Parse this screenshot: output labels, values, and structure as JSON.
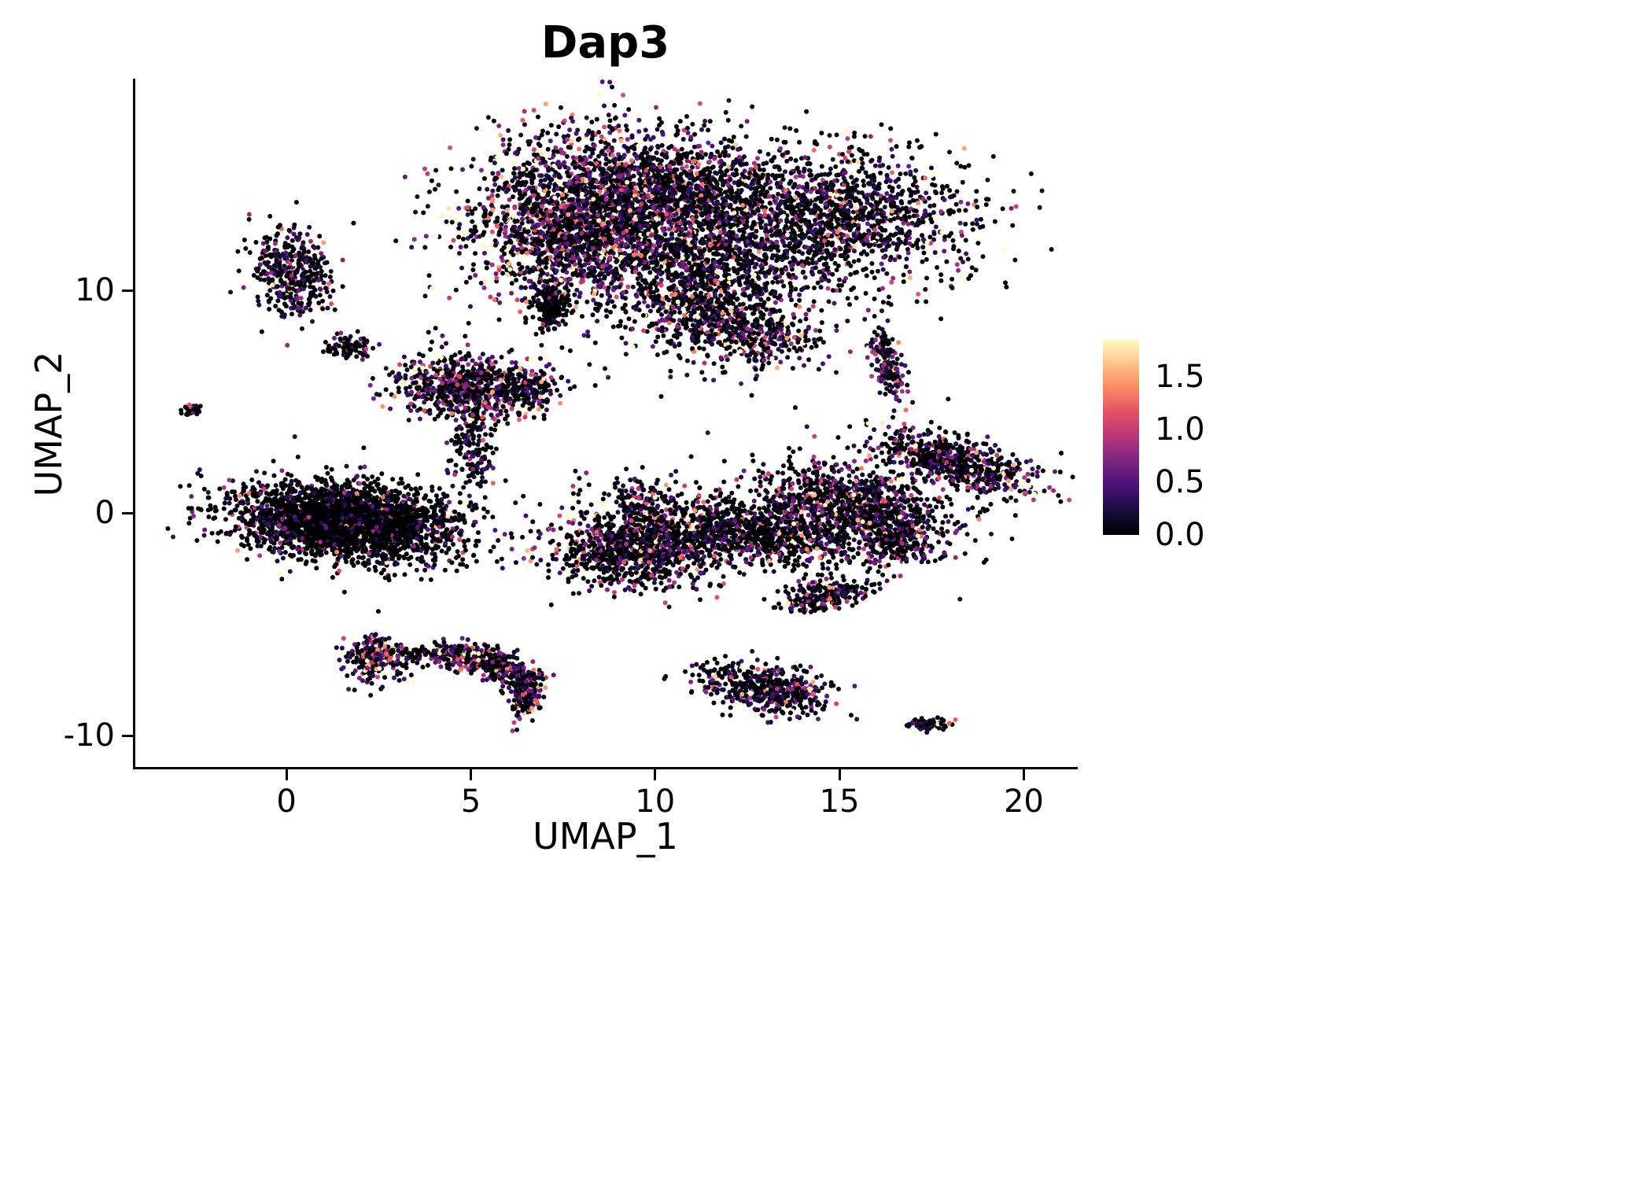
{
  "chart_data": {
    "type": "scatter",
    "title": "Dap3",
    "xlabel": "UMAP_1",
    "ylabel": "UMAP_2",
    "x_ticks": [
      0,
      5,
      10,
      15,
      20
    ],
    "y_ticks": [
      10,
      0,
      -10
    ],
    "x_range": [
      -4.1,
      21.4
    ],
    "y_range": [
      -11.4,
      19.5
    ],
    "grid": false,
    "legend_position": "right",
    "point_radius": 3.0,
    "colormap": "magma",
    "seed": 7,
    "colorbar": {
      "vmax": 1.85,
      "ticks": [
        "1.5",
        "1.0",
        "0.5",
        "0.0"
      ]
    },
    "clusters": [
      {
        "name": "top-left-lobe",
        "cx": 8.3,
        "cy": 13.4,
        "sx": 1.5,
        "sy": 1.9,
        "rot": -15,
        "n": 2400,
        "p0": 0.38,
        "scale": 0.6
      },
      {
        "name": "top-mid-bridge",
        "cx": 10.9,
        "cy": 14.6,
        "sx": 1.2,
        "sy": 1.0,
        "rot": 0,
        "n": 600,
        "p0": 0.5,
        "scale": 0.5
      },
      {
        "name": "top-right-lobe",
        "cx": 14.5,
        "cy": 13.2,
        "sx": 2.0,
        "sy": 1.5,
        "rot": 8,
        "n": 1500,
        "p0": 0.52,
        "scale": 0.5
      },
      {
        "name": "top-down-extension",
        "cx": 11.2,
        "cy": 10.2,
        "sx": 1.0,
        "sy": 1.5,
        "rot": 10,
        "n": 750,
        "p0": 0.5,
        "scale": 0.55
      },
      {
        "name": "top-lower-tail",
        "cx": 12.5,
        "cy": 8.2,
        "sx": 1.1,
        "sy": 0.7,
        "rot": -20,
        "n": 380,
        "p0": 0.42,
        "scale": 0.6
      },
      {
        "name": "top-dark-notch",
        "cx": 7.15,
        "cy": 9.4,
        "sx": 0.22,
        "sy": 0.55,
        "rot": 0,
        "n": 220,
        "p0": 0.8,
        "scale": 0.3
      },
      {
        "name": "top-halo",
        "cx": 11.3,
        "cy": 12.3,
        "sx": 3.1,
        "sy": 2.6,
        "rot": 0,
        "n": 500,
        "p0": 0.62,
        "scale": 0.45
      },
      {
        "name": "left-upper-cluster",
        "cx": 0.15,
        "cy": 10.8,
        "sx": 0.5,
        "sy": 1.0,
        "rot": 5,
        "n": 400,
        "p0": 0.5,
        "scale": 0.5
      },
      {
        "name": "small-mid-left",
        "cx": 1.75,
        "cy": 7.5,
        "sx": 0.38,
        "sy": 0.28,
        "rot": 0,
        "n": 80,
        "p0": 0.7,
        "scale": 0.4
      },
      {
        "name": "far-left-dot",
        "cx": -2.6,
        "cy": 4.6,
        "sx": 0.13,
        "sy": 0.16,
        "rot": 0,
        "n": 26,
        "p0": 0.55,
        "scale": 0.5
      },
      {
        "name": "mid-cluster",
        "cx": 4.8,
        "cy": 5.7,
        "sx": 0.95,
        "sy": 0.7,
        "rot": -10,
        "n": 650,
        "p0": 0.42,
        "scale": 0.6
      },
      {
        "name": "mid-cluster-east",
        "cx": 6.5,
        "cy": 5.6,
        "sx": 0.4,
        "sy": 0.5,
        "rot": 0,
        "n": 170,
        "p0": 0.5,
        "scale": 0.5
      },
      {
        "name": "mid-trail",
        "cx": 5.05,
        "cy": 3.0,
        "sx": 0.28,
        "sy": 1.0,
        "rot": 0,
        "n": 170,
        "p0": 0.6,
        "scale": 0.45
      },
      {
        "name": "left-main-cluster",
        "cx": 1.6,
        "cy": -0.4,
        "sx": 1.45,
        "sy": 0.8,
        "rot": -10,
        "n": 2700,
        "p0": 0.74,
        "scale": 0.4
      },
      {
        "name": "left-main-halo",
        "cx": 1.8,
        "cy": -0.3,
        "sx": 2.1,
        "sy": 1.1,
        "rot": -10,
        "n": 220,
        "p0": 0.75,
        "scale": 0.4
      },
      {
        "name": "right-narrow-strip",
        "cx": 16.3,
        "cy": 6.6,
        "sx": 0.2,
        "sy": 0.8,
        "rot": 12,
        "n": 180,
        "p0": 0.3,
        "scale": 0.7
      },
      {
        "name": "center-right-west",
        "cx": 9.3,
        "cy": -1.6,
        "sx": 1.05,
        "sy": 0.85,
        "rot": 0,
        "n": 850,
        "p0": 0.48,
        "scale": 0.6
      },
      {
        "name": "center-right-spur",
        "cx": 9.7,
        "cy": 0.3,
        "sx": 0.35,
        "sy": 0.7,
        "rot": 15,
        "n": 130,
        "p0": 0.45,
        "scale": 0.6
      },
      {
        "name": "center-right-mid",
        "cx": 12.4,
        "cy": -0.9,
        "sx": 1.5,
        "sy": 0.75,
        "rot": -8,
        "n": 800,
        "p0": 0.55,
        "scale": 0.5
      },
      {
        "name": "center-right-east",
        "cx": 15.5,
        "cy": 0.3,
        "sx": 1.3,
        "sy": 0.85,
        "rot": -22,
        "n": 1000,
        "p0": 0.45,
        "scale": 0.55
      },
      {
        "name": "center-right-arm",
        "cx": 18.1,
        "cy": 2.3,
        "sx": 1.2,
        "sy": 0.5,
        "rot": -27,
        "n": 650,
        "p0": 0.45,
        "scale": 0.55
      },
      {
        "name": "center-right-south-spur",
        "cx": 16.6,
        "cy": -1.4,
        "sx": 0.45,
        "sy": 0.55,
        "rot": 0,
        "n": 160,
        "p0": 0.5,
        "scale": 0.5
      },
      {
        "name": "center-right-halo",
        "cx": 12.8,
        "cy": -0.5,
        "sx": 2.8,
        "sy": 1.4,
        "rot": -10,
        "n": 300,
        "p0": 0.6,
        "scale": 0.5
      },
      {
        "name": "small-below-right",
        "cx": 14.6,
        "cy": -3.7,
        "sx": 0.6,
        "sy": 0.33,
        "rot": 18,
        "n": 210,
        "p0": 0.5,
        "scale": 0.55
      },
      {
        "name": "bottom-left-bright",
        "cx": 2.4,
        "cy": -6.5,
        "sx": 0.38,
        "sy": 0.5,
        "rot": 0,
        "n": 280,
        "p0": 0.25,
        "scale": 0.85
      },
      {
        "name": "bottom-left-scatter",
        "cx": 3.5,
        "cy": -6.3,
        "sx": 0.45,
        "sy": 0.18,
        "rot": 0,
        "n": 45,
        "p0": 0.5,
        "scale": 0.5
      },
      {
        "name": "crescent-a",
        "cx": 4.7,
        "cy": -6.4,
        "sx": 0.5,
        "sy": 0.28,
        "rot": -15,
        "n": 230,
        "p0": 0.35,
        "scale": 0.7
      },
      {
        "name": "crescent-b",
        "cx": 5.9,
        "cy": -7.0,
        "sx": 0.5,
        "sy": 0.3,
        "rot": -38,
        "n": 230,
        "p0": 0.38,
        "scale": 0.65
      },
      {
        "name": "crescent-c",
        "cx": 6.5,
        "cy": -8.0,
        "sx": 0.22,
        "sy": 0.55,
        "rot": -5,
        "n": 200,
        "p0": 0.4,
        "scale": 0.6
      },
      {
        "name": "bottom-center",
        "cx": 13.0,
        "cy": -7.9,
        "sx": 0.95,
        "sy": 0.5,
        "rot": -22,
        "n": 480,
        "p0": 0.5,
        "scale": 0.6
      },
      {
        "name": "bottom-right-tiny",
        "cx": 17.4,
        "cy": -9.5,
        "sx": 0.33,
        "sy": 0.14,
        "rot": -8,
        "n": 70,
        "p0": 0.55,
        "scale": 0.5
      }
    ]
  }
}
